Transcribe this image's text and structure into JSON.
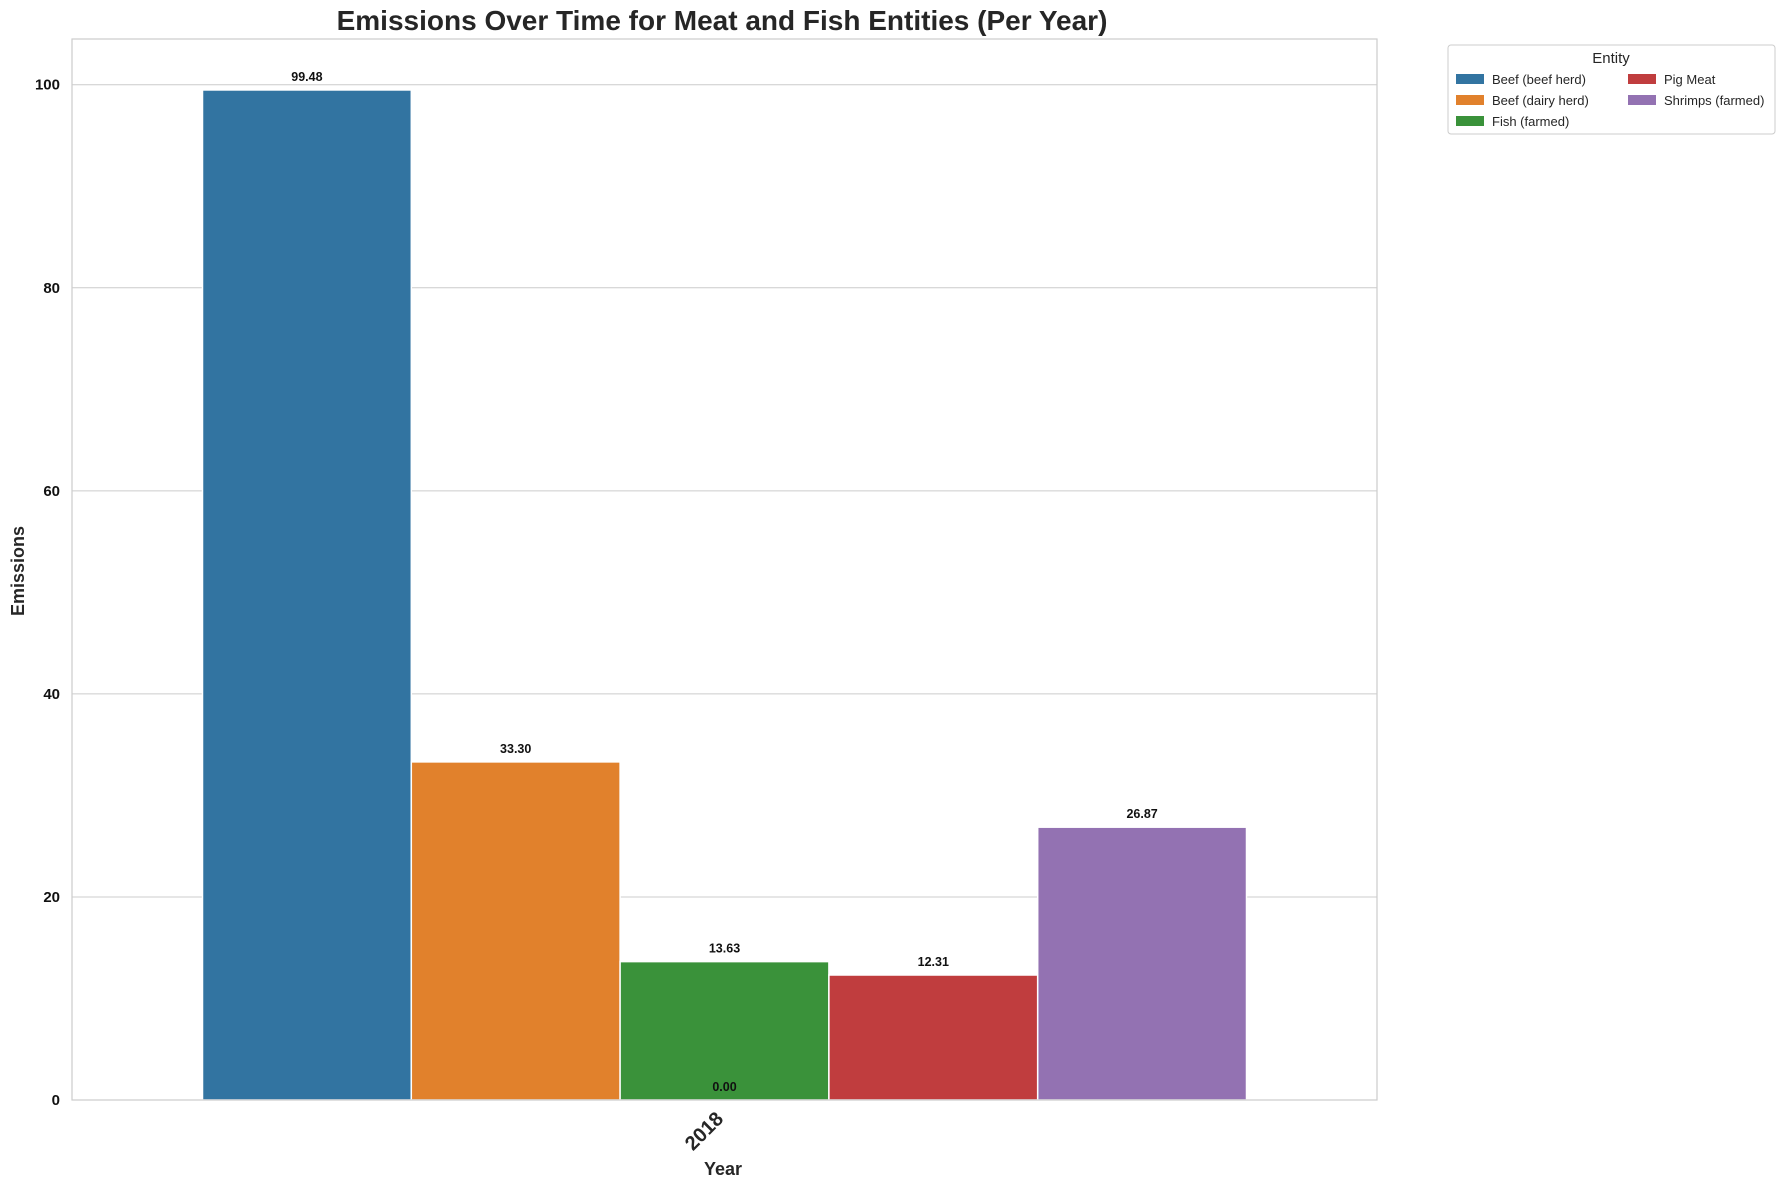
{
  "chart_data": {
    "type": "bar",
    "title": "Emissions Over Time for Meat and Fish Entities (Per Year)",
    "xlabel": "Year",
    "ylabel": "Emissions",
    "categories": [
      "2018"
    ],
    "ylim": [
      0,
      104.5
    ],
    "yticks": [
      0,
      20,
      40,
      60,
      80,
      100
    ],
    "grid": true,
    "legend": {
      "title": "Entity",
      "placement": "outside-top-right",
      "columns": 2
    },
    "series": [
      {
        "name": "Beef (beef herd)",
        "color": "#3274a1",
        "values": [
          99.48
        ],
        "label": "99.48"
      },
      {
        "name": "Beef (dairy herd)",
        "color": "#e1812c",
        "values": [
          33.3
        ],
        "label": "33.30"
      },
      {
        "name": "Fish (farmed)",
        "color": "#3a923a",
        "values": [
          13.63
        ],
        "label": "13.63"
      },
      {
        "name": "Pig Meat",
        "color": "#c03d3e",
        "values": [
          12.31
        ],
        "label": "12.31"
      },
      {
        "name": "Shrimps (farmed)",
        "color": "#9372b2",
        "values": [
          26.87
        ],
        "label": "26.87"
      }
    ],
    "annotations": [
      {
        "text": "0.00",
        "value": 0
      }
    ]
  }
}
